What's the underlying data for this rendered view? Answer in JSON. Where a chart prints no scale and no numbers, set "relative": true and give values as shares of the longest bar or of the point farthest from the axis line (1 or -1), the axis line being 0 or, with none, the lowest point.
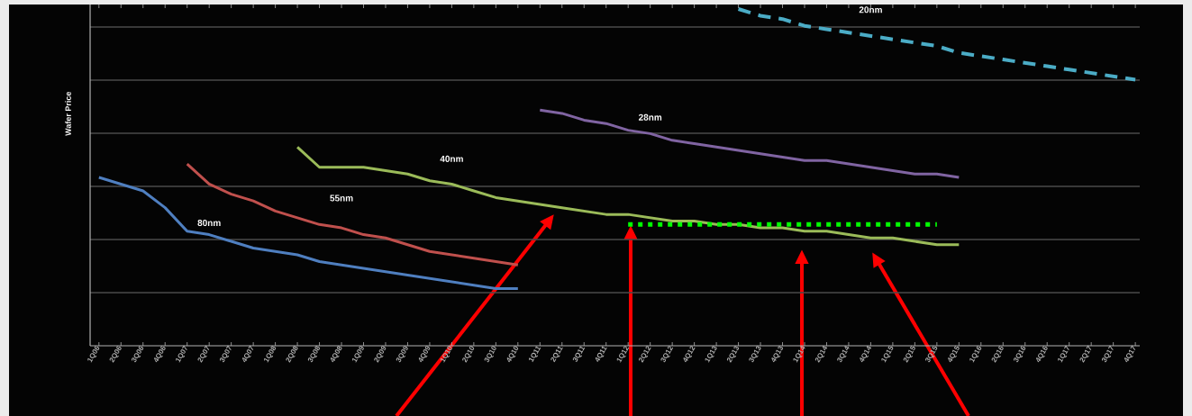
{
  "chart_data": {
    "type": "line",
    "relative": true,
    "grid": "y",
    "ylabel": "Wafer Price",
    "categories": [
      "1Q06",
      "2Q06",
      "3Q06",
      "4Q06",
      "1Q07",
      "2Q07",
      "3Q07",
      "4Q07",
      "1Q08",
      "2Q08",
      "3Q08",
      "4Q08",
      "1Q09",
      "2Q09",
      "3Q09",
      "4Q09",
      "1Q10",
      "2Q10",
      "3Q10",
      "4Q10",
      "1Q11",
      "2Q11",
      "3Q11",
      "4Q11",
      "1Q12",
      "2Q12",
      "3Q12",
      "4Q12",
      "1Q13",
      "2Q13",
      "3Q13",
      "4Q13",
      "1Q14",
      "2Q14",
      "3Q14",
      "4Q14",
      "1Q15",
      "2Q15",
      "3Q15",
      "4Q15",
      "1Q16",
      "2Q16",
      "3Q16",
      "4Q16",
      "1Q17",
      "2Q17",
      "3Q17",
      "4Q17"
    ],
    "series": [
      {
        "name": "80nm",
        "color": "#4f7fc0",
        "values": [
          0.5,
          0.48,
          0.46,
          0.41,
          0.34,
          0.33,
          0.31,
          0.29,
          0.28,
          0.27,
          0.25,
          0.24,
          0.23,
          0.22,
          0.21,
          0.2,
          0.19,
          0.18,
          0.17,
          0.17,
          null,
          null,
          null,
          null,
          null,
          null,
          null,
          null,
          null,
          null,
          null,
          null,
          null,
          null,
          null,
          null,
          null,
          null,
          null,
          null,
          null,
          null,
          null,
          null,
          null,
          null,
          null,
          null
        ]
      },
      {
        "name": "55nm",
        "color": "#c0504d",
        "values": [
          null,
          null,
          null,
          null,
          0.54,
          0.48,
          0.45,
          0.43,
          0.4,
          0.38,
          0.36,
          0.35,
          0.33,
          0.32,
          0.3,
          0.28,
          0.27,
          0.26,
          0.25,
          0.24,
          null,
          null,
          null,
          null,
          null,
          null,
          null,
          null,
          null,
          null,
          null,
          null,
          null,
          null,
          null,
          null,
          null,
          null,
          null,
          null,
          null,
          null,
          null,
          null,
          null,
          null,
          null,
          null
        ]
      },
      {
        "name": "40nm",
        "color": "#9bbb59",
        "values": [
          null,
          null,
          null,
          null,
          null,
          null,
          null,
          null,
          null,
          0.59,
          0.53,
          0.53,
          0.53,
          0.52,
          0.51,
          0.49,
          0.48,
          0.46,
          0.44,
          0.43,
          0.42,
          0.41,
          0.4,
          0.39,
          0.39,
          0.38,
          0.37,
          0.37,
          0.36,
          0.36,
          0.35,
          0.35,
          0.34,
          0.34,
          0.33,
          0.32,
          0.32,
          0.31,
          0.3,
          0.3,
          null,
          null,
          null,
          null,
          null,
          null,
          null,
          null
        ]
      },
      {
        "name": "28nm",
        "color": "#8064a2",
        "values": [
          null,
          null,
          null,
          null,
          null,
          null,
          null,
          null,
          null,
          null,
          null,
          null,
          null,
          null,
          null,
          null,
          null,
          null,
          null,
          null,
          0.7,
          0.69,
          0.67,
          0.66,
          0.64,
          0.63,
          0.61,
          0.6,
          0.59,
          0.58,
          0.57,
          0.56,
          0.55,
          0.55,
          0.54,
          0.53,
          0.52,
          0.51,
          0.51,
          0.5,
          null,
          null,
          null,
          null,
          null,
          null,
          null,
          null
        ]
      },
      {
        "name": "20nm",
        "color": "#4bacc6",
        "line_style": "dashed",
        "values": [
          null,
          null,
          null,
          null,
          null,
          null,
          null,
          null,
          null,
          null,
          null,
          null,
          null,
          null,
          null,
          null,
          null,
          null,
          null,
          null,
          null,
          null,
          null,
          null,
          null,
          null,
          null,
          null,
          null,
          1.0,
          0.98,
          0.97,
          0.95,
          0.94,
          0.93,
          0.92,
          0.91,
          0.9,
          0.89,
          0.87,
          0.86,
          0.85,
          0.84,
          0.83,
          0.82,
          0.81,
          0.8,
          0.79
        ]
      },
      {
        "color": "#00ff00",
        "line_style": "dotted",
        "values": [
          null,
          null,
          null,
          null,
          null,
          null,
          null,
          null,
          null,
          null,
          null,
          null,
          null,
          null,
          null,
          null,
          null,
          null,
          null,
          null,
          null,
          null,
          null,
          null,
          0.36,
          0.36,
          0.36,
          0.36,
          0.36,
          0.36,
          0.36,
          0.36,
          0.36,
          0.36,
          0.36,
          0.36,
          0.36,
          0.36,
          0.36,
          null,
          null,
          null,
          null,
          null,
          null,
          null,
          null,
          null
        ]
      }
    ]
  }
}
